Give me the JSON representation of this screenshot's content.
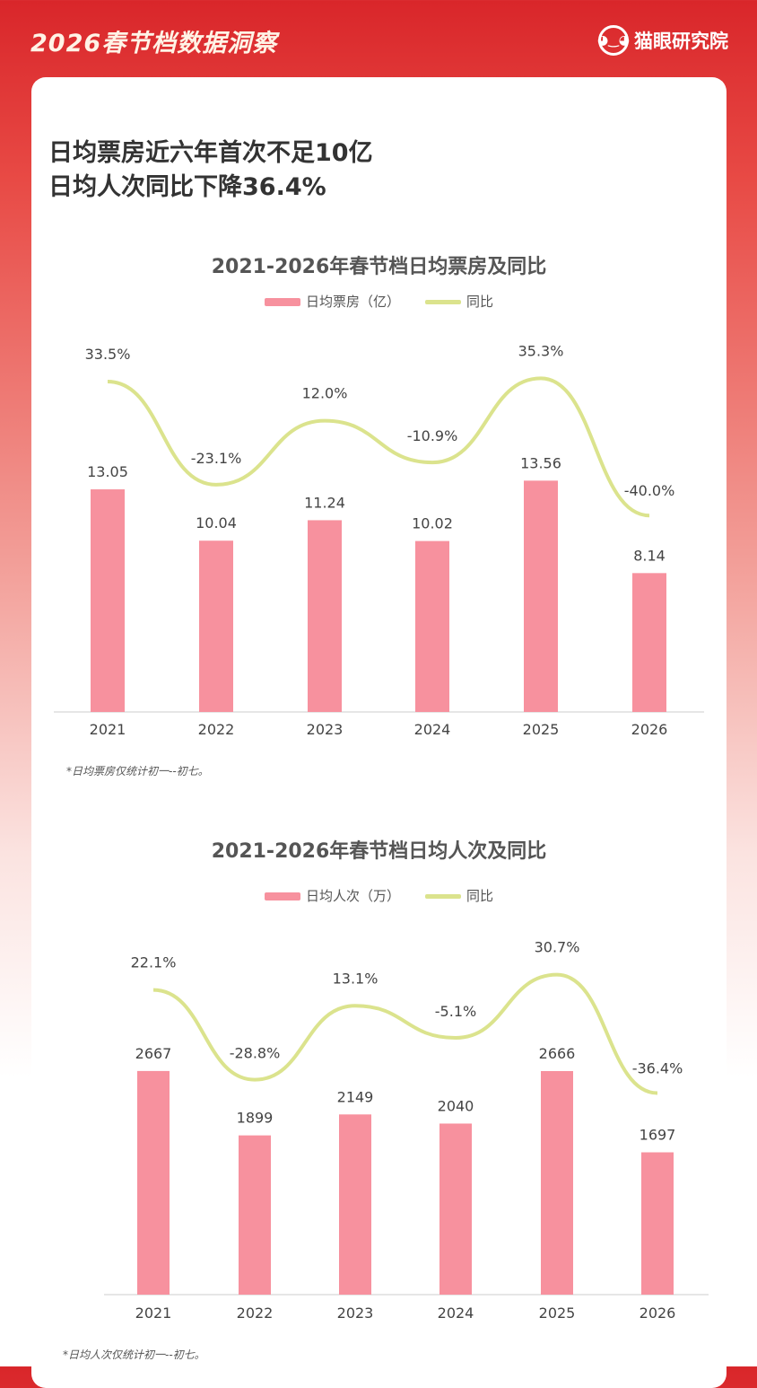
{
  "header": {
    "title": "2026春节档数据洞察",
    "brand": "猫眼研究院",
    "logo_icon": "cat-face-icon"
  },
  "headline": [
    "日均票房近六年首次不足10亿",
    "日均人次同比下降36.4%"
  ],
  "colors": {
    "bar": "#f7919e",
    "line": "#dbe38d"
  },
  "chart_data": [
    {
      "type": "bar+line",
      "title": "2021-2026年春节档日均票房及同比",
      "legend": [
        "日均票房（亿）",
        "同比"
      ],
      "categories": [
        "2021",
        "2022",
        "2023",
        "2024",
        "2025",
        "2026"
      ],
      "series": [
        {
          "name": "日均票房（亿）",
          "type": "bar",
          "values": [
            13.05,
            10.04,
            11.24,
            10.02,
            13.56,
            8.14
          ],
          "labels": [
            "13.05",
            "10.04",
            "11.24",
            "10.02",
            "13.56",
            "8.14"
          ]
        },
        {
          "name": "同比",
          "type": "line",
          "values": [
            33.5,
            -23.1,
            12.0,
            -10.9,
            35.3,
            -40.0
          ],
          "labels": [
            "33.5%",
            "-23.1%",
            "12.0%",
            "-10.9%",
            "35.3%",
            "-40.0%"
          ]
        }
      ],
      "note": "*日均票房仅统计初一--初七。"
    },
    {
      "type": "bar+line",
      "title": "2021-2026年春节档日均人次及同比",
      "legend": [
        "日均人次（万）",
        "同比"
      ],
      "categories": [
        "2021",
        "2022",
        "2023",
        "2024",
        "2025",
        "2026"
      ],
      "series": [
        {
          "name": "日均人次（万）",
          "type": "bar",
          "values": [
            2667,
            1899,
            2149,
            2040,
            2666,
            1697
          ],
          "labels": [
            "2667",
            "1899",
            "2149",
            "2040",
            "2666",
            "1697"
          ]
        },
        {
          "name": "同比",
          "type": "line",
          "values": [
            22.1,
            -28.8,
            13.1,
            -5.1,
            30.7,
            -36.4
          ],
          "labels": [
            "22.1%",
            "-28.8%",
            "13.1%",
            "-5.1%",
            "30.7%",
            "-36.4%"
          ]
        }
      ],
      "note": "*日均人次仅统计初一--初七。"
    }
  ]
}
